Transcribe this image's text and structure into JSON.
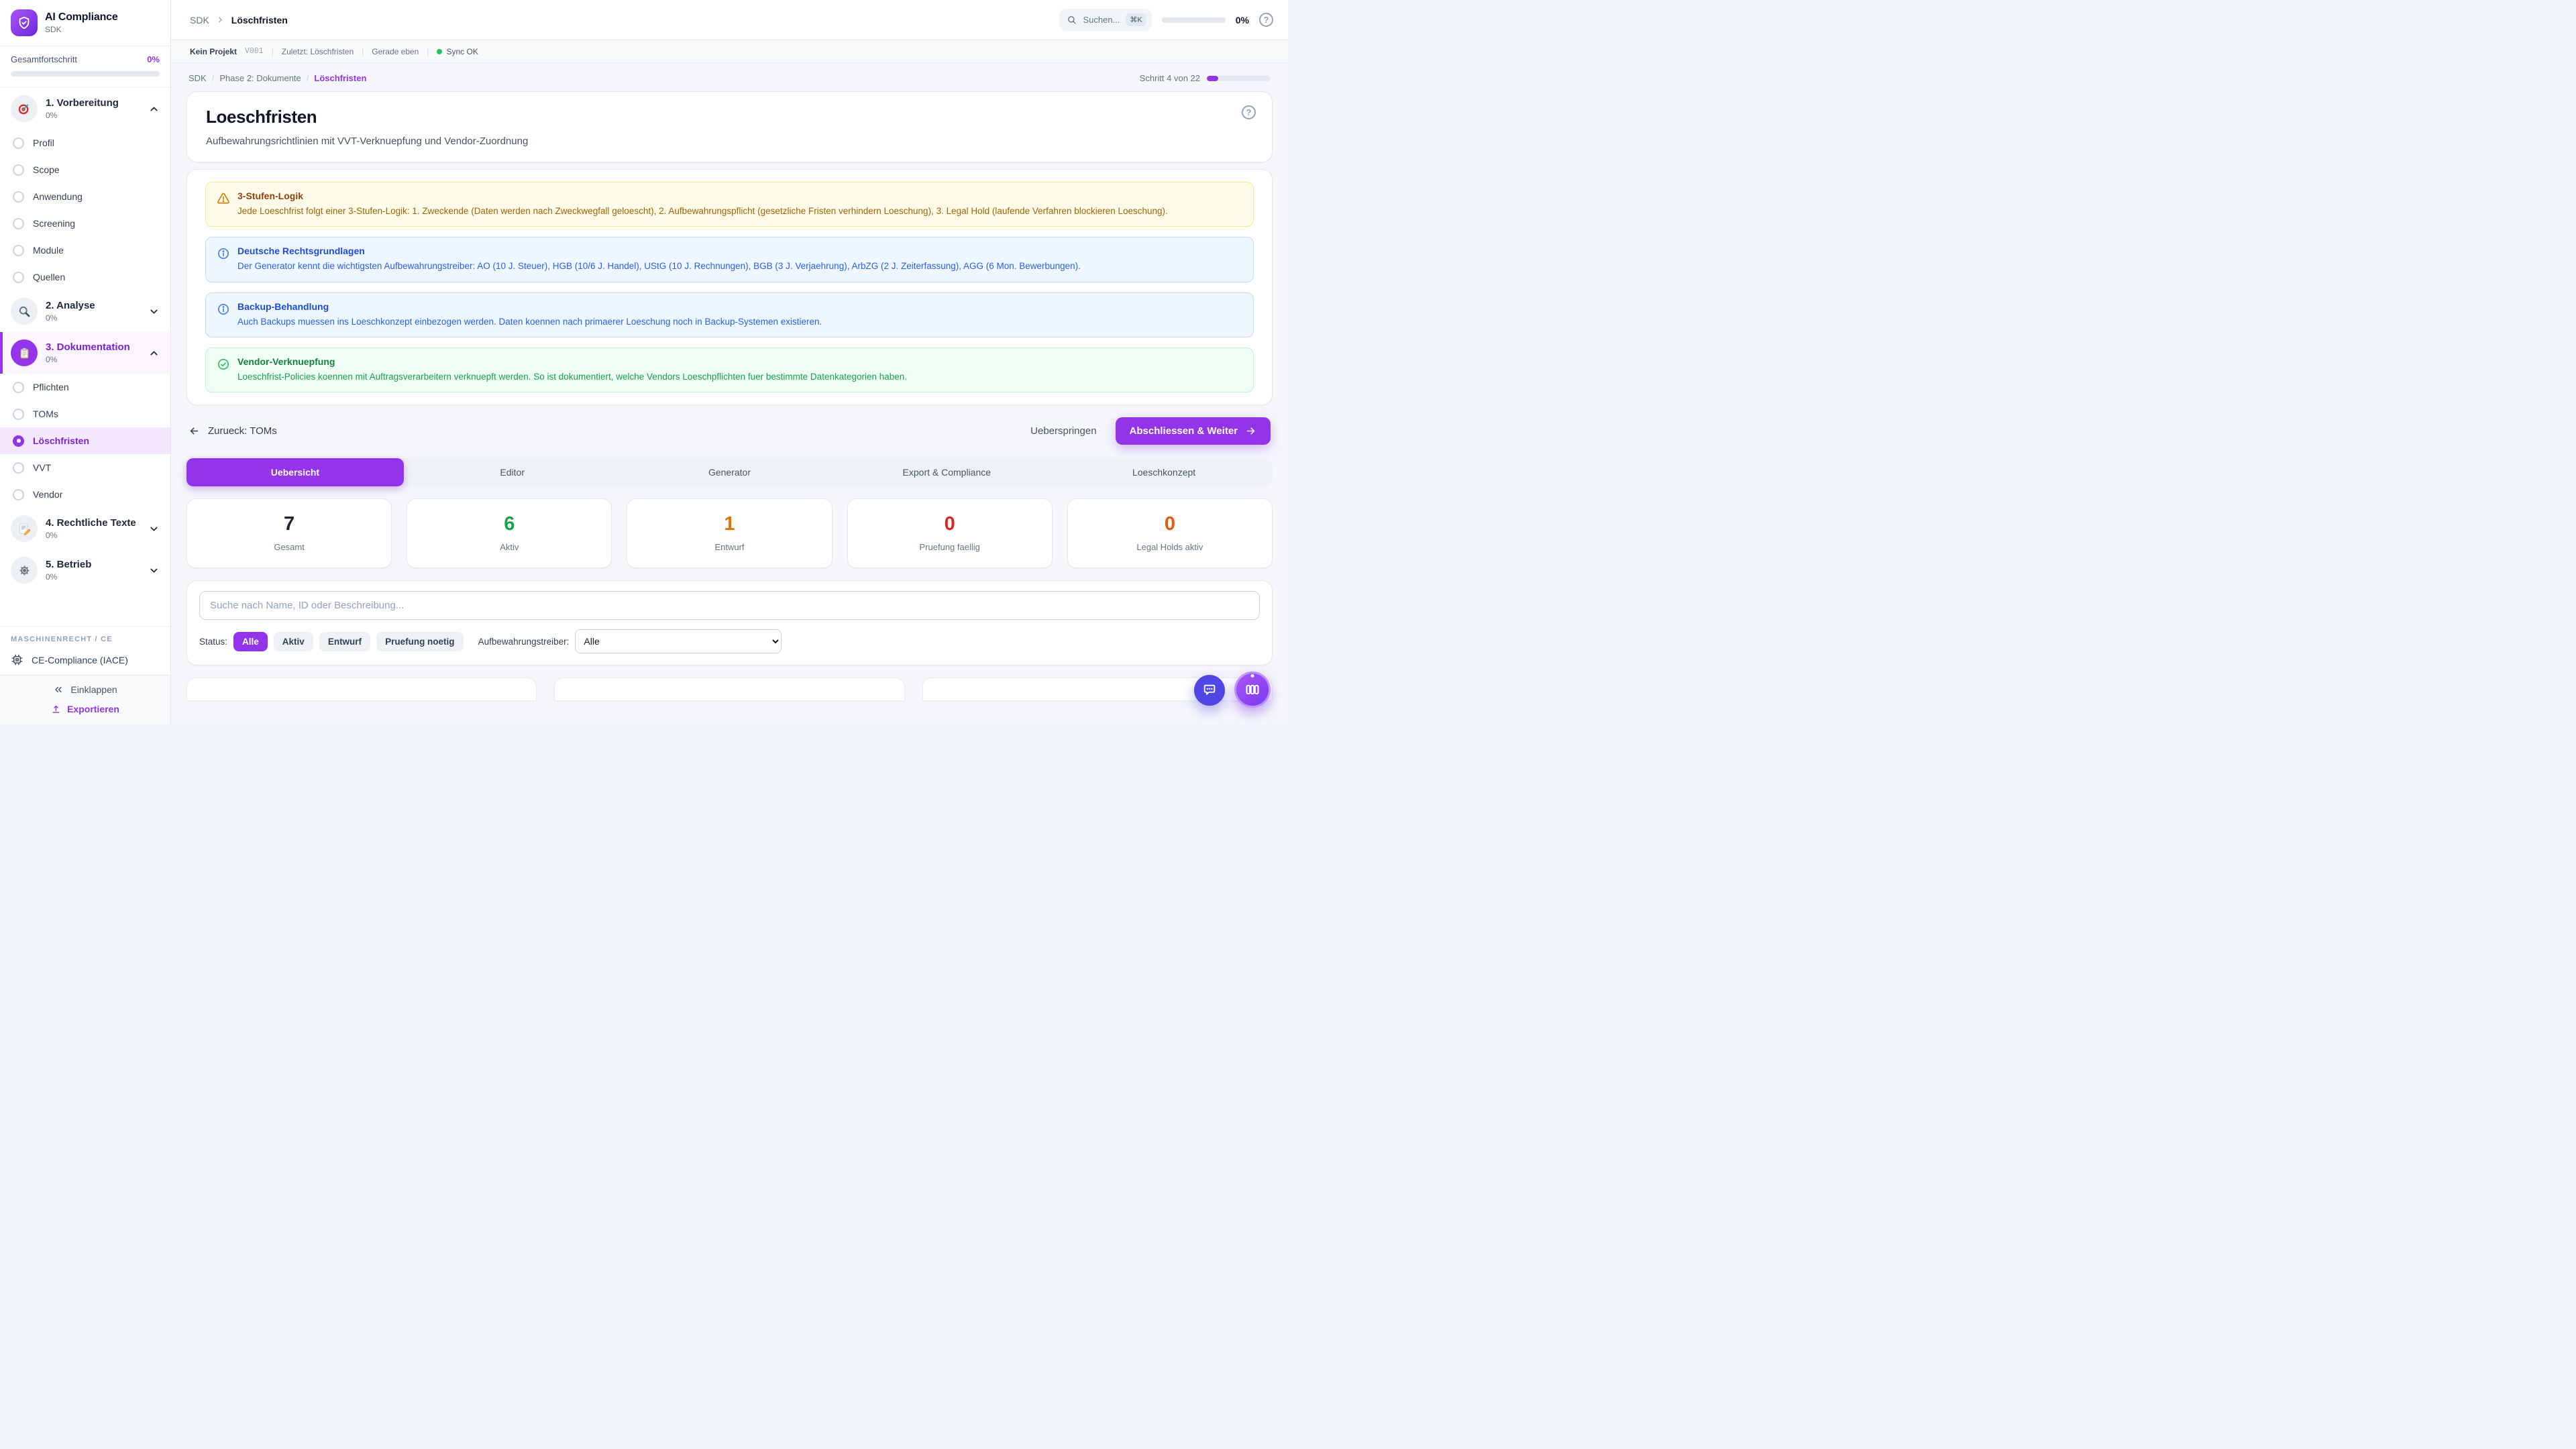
{
  "app": {
    "name": "AI Compliance",
    "subtitle": "SDK"
  },
  "colors": {
    "accent": "#9333ea",
    "fab_chat": "#4f46e5",
    "sync_ok": "#22c55e"
  },
  "sidebar": {
    "overall_label": "Gesamtfortschritt",
    "overall_value": "0%",
    "overall_pct": 0,
    "sections": [
      {
        "title": "1. Vorbereitung",
        "pct": "0%",
        "icon": "target-icon",
        "icon_bg": "gray",
        "expanded": true,
        "active": false,
        "items": [
          "Profil",
          "Scope",
          "Anwendung",
          "Screening",
          "Module",
          "Quellen"
        ],
        "active_item": ""
      },
      {
        "title": "2. Analyse",
        "pct": "0%",
        "icon": "magnifier-icon",
        "icon_bg": "gray",
        "expanded": false,
        "active": false,
        "items": [],
        "active_item": ""
      },
      {
        "title": "3. Dokumentation",
        "pct": "0%",
        "icon": "clipboard-icon",
        "icon_bg": "purple",
        "expanded": true,
        "active": true,
        "items": [
          "Pflichten",
          "TOMs",
          "Löschfristen",
          "VVT",
          "Vendor"
        ],
        "active_item": "Löschfristen"
      },
      {
        "title": "4. Rechtliche Texte",
        "pct": "0%",
        "icon": "memo-icon",
        "icon_bg": "gray",
        "expanded": false,
        "active": false,
        "items": [],
        "active_item": ""
      },
      {
        "title": "5. Betrieb",
        "pct": "0%",
        "icon": "gear-icon",
        "icon_bg": "gray",
        "expanded": false,
        "active": false,
        "items": [],
        "active_item": ""
      }
    ],
    "machine_section_label": "MASCHINENRECHT / CE",
    "machine_item_label": "CE-Compliance (IACE)",
    "collapse_label": "Einklappen",
    "export_label": "Exportieren"
  },
  "topbar": {
    "breadcrumb_root": "SDK",
    "breadcrumb_current": "Löschfristen",
    "search_placeholder": "Suchen...",
    "search_kbd": "⌘K",
    "progress_value": "0%",
    "progress_pct": 0
  },
  "statusbar": {
    "project": "Kein Projekt",
    "version": "V001",
    "separator": "|",
    "last_label": "Zuletzt: Löschfristen",
    "time": "Gerade eben",
    "sync": "Sync OK"
  },
  "page": {
    "breadcrumb": [
      "SDK",
      "Phase 2: Dokumente",
      "Löschfristen"
    ],
    "step_label": "Schritt 4 von 22",
    "step_pct": 18
  },
  "header_card": {
    "title": "Loeschfristen",
    "subtitle": "Aufbewahrungsrichtlinien mit VVT-Verknuepfung und Vendor-Zuordnung"
  },
  "notes": [
    {
      "type": "warning",
      "icon": "warning-icon",
      "title": "3-Stufen-Logik",
      "body": "Jede Loeschfrist folgt einer 3-Stufen-Logik: 1. Zweckende (Daten werden nach Zweckwegfall geloescht), 2. Aufbewahrungspflicht (gesetzliche Fristen verhindern Loeschung), 3. Legal Hold (laufende Verfahren blockieren Loeschung)."
    },
    {
      "type": "info",
      "icon": "info-icon",
      "title": "Deutsche Rechtsgrundlagen",
      "body": "Der Generator kennt die wichtigsten Aufbewahrungstreiber: AO (10 J. Steuer), HGB (10/6 J. Handel), UStG (10 J. Rechnungen), BGB (3 J. Verjaehrung), ArbZG (2 J. Zeiterfassung), AGG (6 Mon. Bewerbungen)."
    },
    {
      "type": "info",
      "icon": "info-icon",
      "title": "Backup-Behandlung",
      "body": "Auch Backups muessen ins Loeschkonzept einbezogen werden. Daten koennen nach primaerer Loeschung noch in Backup-Systemen existieren."
    },
    {
      "type": "success",
      "icon": "check-icon",
      "title": "Vendor-Verknuepfung",
      "body": "Loeschfrist-Policies koennen mit Auftragsverarbeitern verknuepft werden. So ist dokumentiert, welche Vendors Loeschpflichten fuer bestimmte Datenkategorien haben."
    }
  ],
  "wizard_nav": {
    "back_label": "Zurueck: TOMs",
    "skip_label": "Ueberspringen",
    "next_label": "Abschliessen & Weiter"
  },
  "tabs": {
    "active_index": 0,
    "items": [
      "Uebersicht",
      "Editor",
      "Generator",
      "Export & Compliance",
      "Loeschkonzept"
    ]
  },
  "stats": [
    {
      "value": "7",
      "label": "Gesamt",
      "color": "#1e2432"
    },
    {
      "value": "6",
      "label": "Aktiv",
      "color": "#16a34a"
    },
    {
      "value": "1",
      "label": "Entwurf",
      "color": "#d97706"
    },
    {
      "value": "0",
      "label": "Pruefung faellig",
      "color": "#dc2626"
    },
    {
      "value": "0",
      "label": "Legal Holds aktiv",
      "color": "#ea580c"
    }
  ],
  "filters": {
    "search_placeholder": "Suche nach Name, ID oder Beschreibung...",
    "status_label": "Status:",
    "status_options": [
      "Alle",
      "Aktiv",
      "Entwurf",
      "Pruefung noetig"
    ],
    "status_active": "Alle",
    "driver_label": "Aufbewahrungstreiber:",
    "driver_value": "Alle"
  }
}
